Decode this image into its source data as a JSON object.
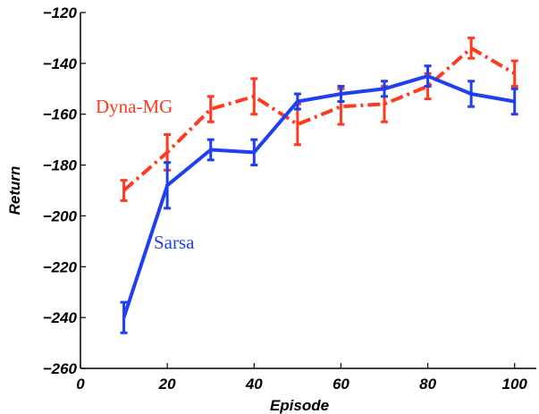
{
  "chart_data": {
    "type": "line",
    "title": "",
    "xlabel": "Episode",
    "ylabel": "Return",
    "xlim": [
      0,
      105
    ],
    "ylim": [
      -260,
      -120
    ],
    "xticks": [
      0,
      20,
      40,
      60,
      80,
      100
    ],
    "yticks": [
      -120,
      -140,
      -160,
      -180,
      -200,
      -220,
      -240,
      -260
    ],
    "grid": false,
    "legend": "inline labels",
    "series": [
      {
        "name": "Dyna-MG",
        "color": "#ff3a1f",
        "style": "dash-dot",
        "x": [
          10,
          20,
          30,
          40,
          50,
          60,
          70,
          80,
          90,
          100
        ],
        "y": [
          -190,
          -175,
          -158,
          -153,
          -164,
          -157,
          -156,
          -149,
          -134,
          -144
        ],
        "err": [
          4,
          7,
          5,
          7,
          8,
          7,
          7,
          5,
          4,
          5
        ]
      },
      {
        "name": "Sarsa",
        "color": "#1f3ff0",
        "style": "solid",
        "x": [
          10,
          20,
          30,
          40,
          50,
          60,
          70,
          80,
          90,
          100
        ],
        "y": [
          -240,
          -188,
          -174,
          -175,
          -155,
          -152,
          -150,
          -145,
          -152,
          -155
        ],
        "err": [
          6,
          9,
          4,
          5,
          3,
          3,
          3,
          4,
          5,
          5
        ]
      }
    ]
  }
}
